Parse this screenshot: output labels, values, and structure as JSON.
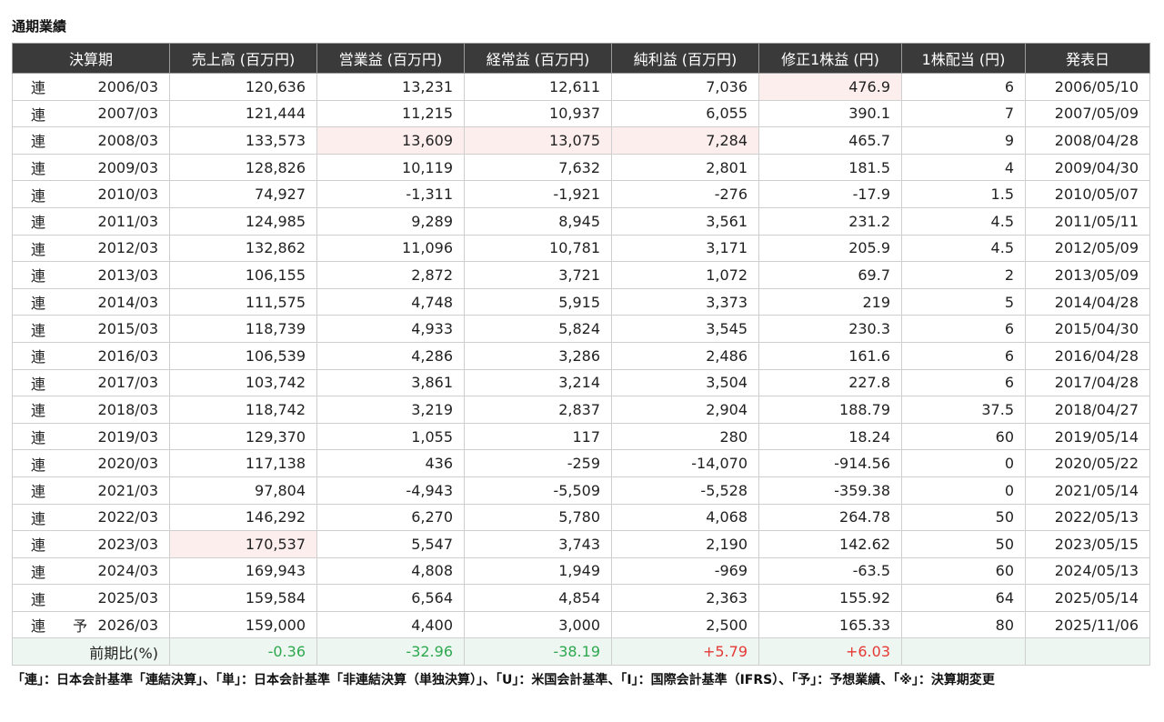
{
  "title": "通期業績",
  "headers": [
    "決算期",
    "売上高 (百万円)",
    "営業益 (百万円)",
    "経常益 (百万円)",
    "純利益 (百万円)",
    "修正1株益 (円)",
    "1株配当 (円)",
    "発表日"
  ],
  "rows": [
    {
      "kind": "連",
      "forecast": "",
      "period": "2006/03",
      "sales": "120,636",
      "op": "13,231",
      "ord": "12,611",
      "net": "7,036",
      "eps": "476.9",
      "div": "6",
      "date": "2006/05/10"
    },
    {
      "kind": "連",
      "forecast": "",
      "period": "2007/03",
      "sales": "121,444",
      "op": "11,215",
      "ord": "10,937",
      "net": "6,055",
      "eps": "390.1",
      "div": "7",
      "date": "2007/05/09"
    },
    {
      "kind": "連",
      "forecast": "",
      "period": "2008/03",
      "sales": "133,573",
      "op": "13,609",
      "ord": "13,075",
      "net": "7,284",
      "eps": "465.7",
      "div": "9",
      "date": "2008/04/28"
    },
    {
      "kind": "連",
      "forecast": "",
      "period": "2009/03",
      "sales": "128,826",
      "op": "10,119",
      "ord": "7,632",
      "net": "2,801",
      "eps": "181.5",
      "div": "4",
      "date": "2009/04/30"
    },
    {
      "kind": "連",
      "forecast": "",
      "period": "2010/03",
      "sales": "74,927",
      "op": "-1,311",
      "ord": "-1,921",
      "net": "-276",
      "eps": "-17.9",
      "div": "1.5",
      "date": "2010/05/07"
    },
    {
      "kind": "連",
      "forecast": "",
      "period": "2011/03",
      "sales": "124,985",
      "op": "9,289",
      "ord": "8,945",
      "net": "3,561",
      "eps": "231.2",
      "div": "4.5",
      "date": "2011/05/11"
    },
    {
      "kind": "連",
      "forecast": "",
      "period": "2012/03",
      "sales": "132,862",
      "op": "11,096",
      "ord": "10,781",
      "net": "3,171",
      "eps": "205.9",
      "div": "4.5",
      "date": "2012/05/09"
    },
    {
      "kind": "連",
      "forecast": "",
      "period": "2013/03",
      "sales": "106,155",
      "op": "2,872",
      "ord": "3,721",
      "net": "1,072",
      "eps": "69.7",
      "div": "2",
      "date": "2013/05/09"
    },
    {
      "kind": "連",
      "forecast": "",
      "period": "2014/03",
      "sales": "111,575",
      "op": "4,748",
      "ord": "5,915",
      "net": "3,373",
      "eps": "219",
      "div": "5",
      "date": "2014/04/28"
    },
    {
      "kind": "連",
      "forecast": "",
      "period": "2015/03",
      "sales": "118,739",
      "op": "4,933",
      "ord": "5,824",
      "net": "3,545",
      "eps": "230.3",
      "div": "6",
      "date": "2015/04/30"
    },
    {
      "kind": "連",
      "forecast": "",
      "period": "2016/03",
      "sales": "106,539",
      "op": "4,286",
      "ord": "3,286",
      "net": "2,486",
      "eps": "161.6",
      "div": "6",
      "date": "2016/04/28"
    },
    {
      "kind": "連",
      "forecast": "",
      "period": "2017/03",
      "sales": "103,742",
      "op": "3,861",
      "ord": "3,214",
      "net": "3,504",
      "eps": "227.8",
      "div": "6",
      "date": "2017/04/28"
    },
    {
      "kind": "連",
      "forecast": "",
      "period": "2018/03",
      "sales": "118,742",
      "op": "3,219",
      "ord": "2,837",
      "net": "2,904",
      "eps": "188.79",
      "div": "37.5",
      "date": "2018/04/27"
    },
    {
      "kind": "連",
      "forecast": "",
      "period": "2019/03",
      "sales": "129,370",
      "op": "1,055",
      "ord": "117",
      "net": "280",
      "eps": "18.24",
      "div": "60",
      "date": "2019/05/14"
    },
    {
      "kind": "連",
      "forecast": "",
      "period": "2020/03",
      "sales": "117,138",
      "op": "436",
      "ord": "-259",
      "net": "-14,070",
      "eps": "-914.56",
      "div": "0",
      "date": "2020/05/22"
    },
    {
      "kind": "連",
      "forecast": "",
      "period": "2021/03",
      "sales": "97,804",
      "op": "-4,943",
      "ord": "-5,509",
      "net": "-5,528",
      "eps": "-359.38",
      "div": "0",
      "date": "2021/05/14"
    },
    {
      "kind": "連",
      "forecast": "",
      "period": "2022/03",
      "sales": "146,292",
      "op": "6,270",
      "ord": "5,780",
      "net": "4,068",
      "eps": "264.78",
      "div": "50",
      "date": "2022/05/13"
    },
    {
      "kind": "連",
      "forecast": "",
      "period": "2023/03",
      "sales": "170,537",
      "op": "5,547",
      "ord": "3,743",
      "net": "2,190",
      "eps": "142.62",
      "div": "50",
      "date": "2023/05/15"
    },
    {
      "kind": "連",
      "forecast": "",
      "period": "2024/03",
      "sales": "169,943",
      "op": "4,808",
      "ord": "1,949",
      "net": "-969",
      "eps": "-63.5",
      "div": "60",
      "date": "2024/05/13"
    },
    {
      "kind": "連",
      "forecast": "",
      "period": "2025/03",
      "sales": "159,584",
      "op": "6,564",
      "ord": "4,854",
      "net": "2,363",
      "eps": "155.92",
      "div": "64",
      "date": "2025/05/14"
    },
    {
      "kind": "連",
      "forecast": "予",
      "period": "2026/03",
      "sales": "159,000",
      "op": "4,400",
      "ord": "3,000",
      "net": "2,500",
      "eps": "165.33",
      "div": "80",
      "date": "2025/11/06"
    }
  ],
  "ratio": {
    "label": "前期比(%)",
    "sales": "-0.36",
    "op": "-32.96",
    "ord": "-38.19",
    "net": "+5.79",
    "eps": "+6.03",
    "div": "",
    "date": ""
  },
  "footnote": "「連」：日本会計基準「連結決算」、「単」：日本会計基準「非連結決算（単独決算）」、「U」：米国会計基準、「I」：国際会計基準（IFRS）、「予」：予想業績、「※」：決算期変更",
  "colors": {
    "header_bg": "#3a3a3a",
    "highlight_bg": "#fdeeee",
    "ratio_bg": "#eef6f1",
    "negative": "#2ea84f",
    "positive": "#e53935"
  }
}
